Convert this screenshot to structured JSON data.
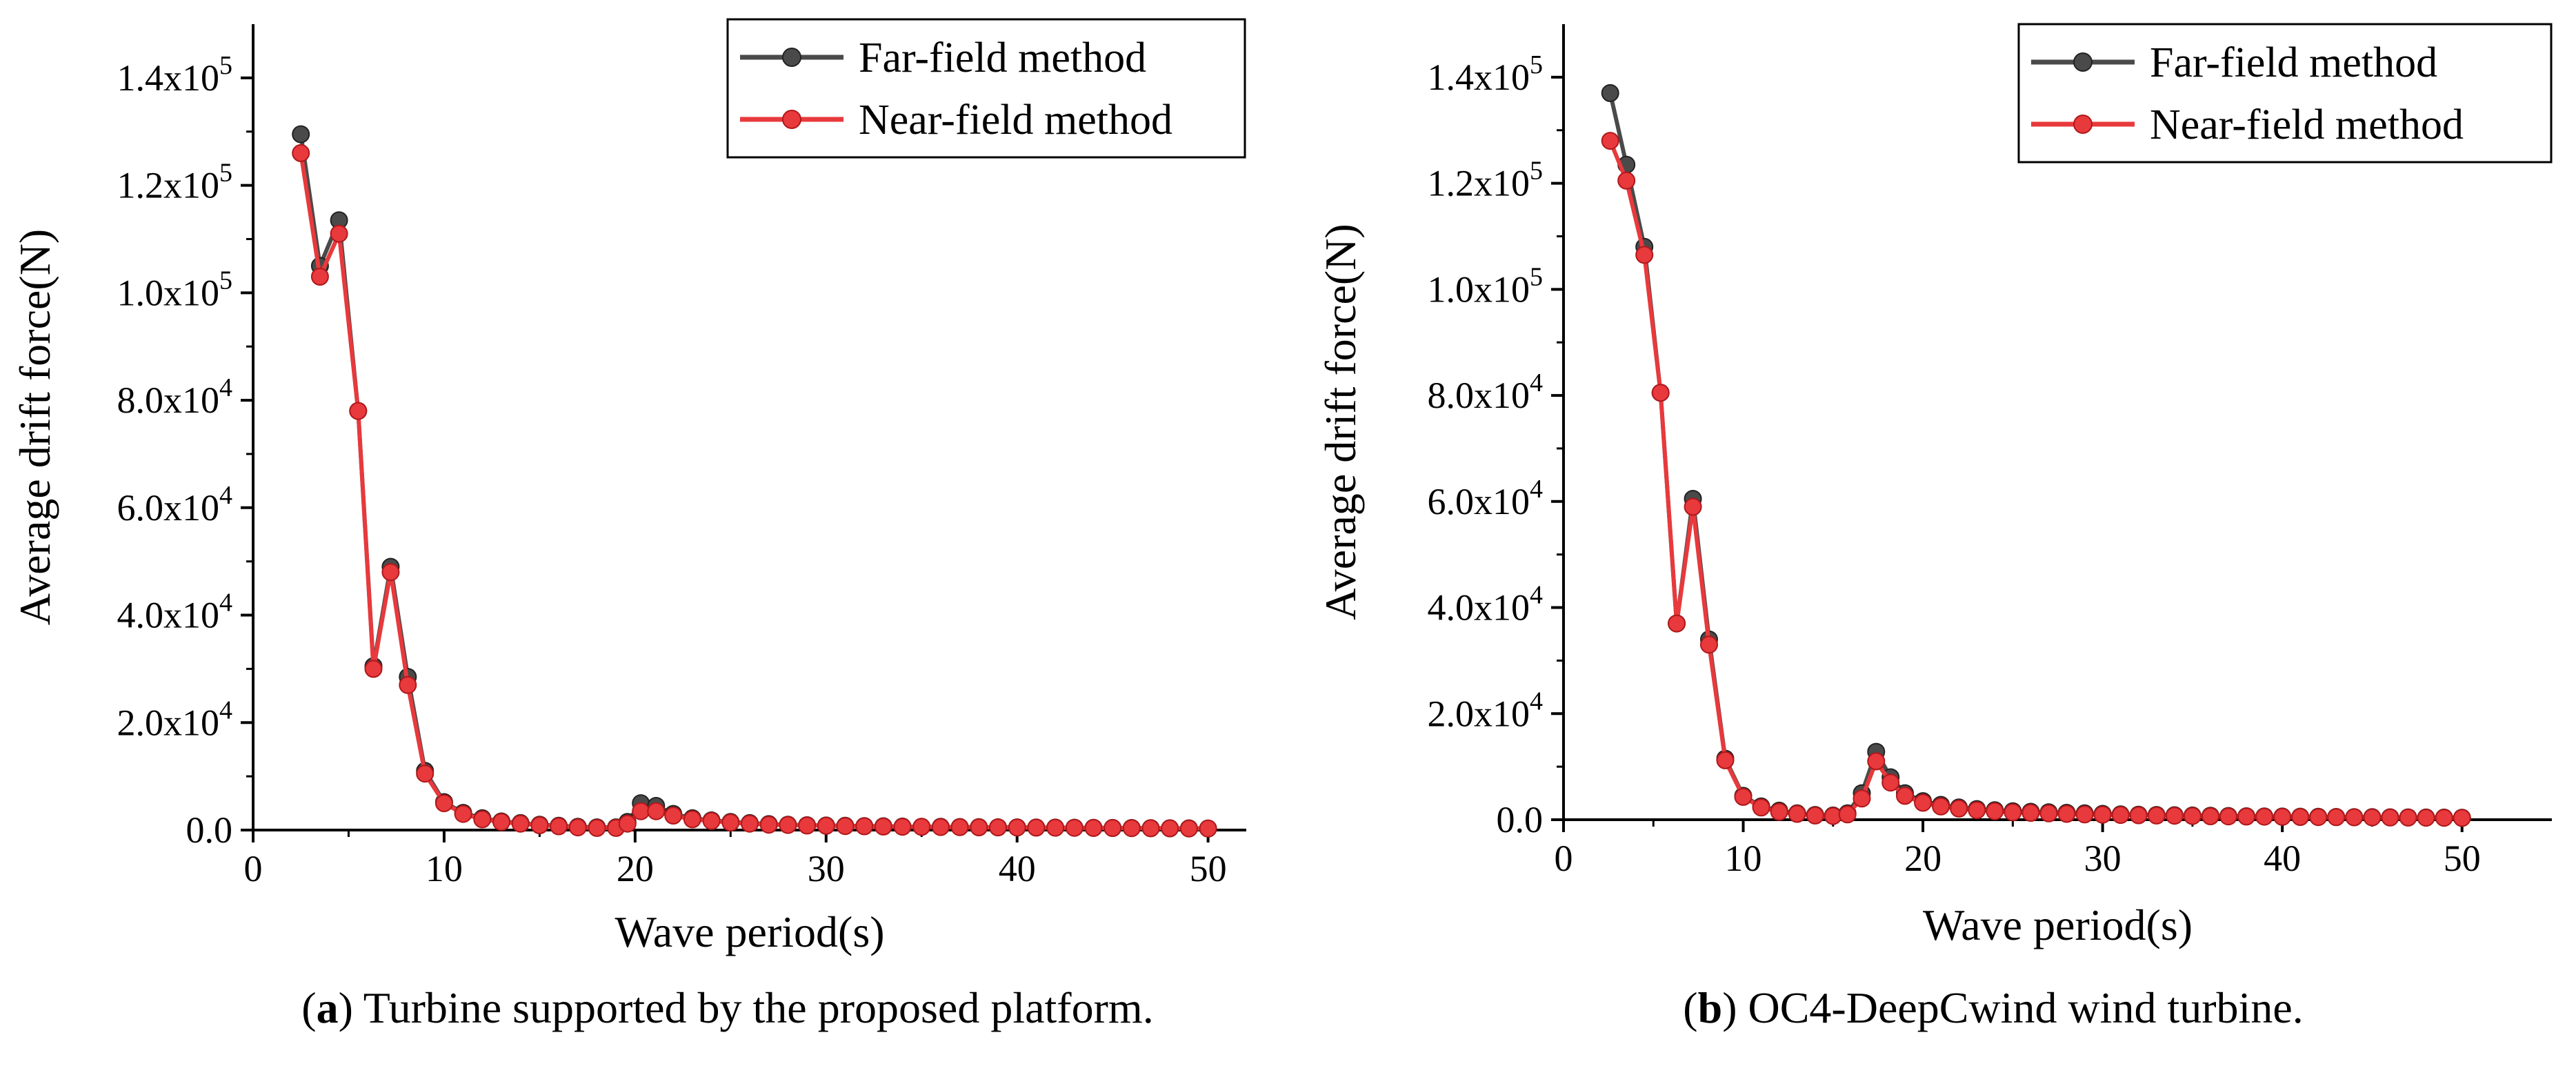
{
  "figure": {
    "panels": [
      {
        "id": "a",
        "caption_letter": "a",
        "caption_text": " Turbine supported by the proposed platform.",
        "x_label": "Wave period(s)",
        "y_label": "Average drift force(N)",
        "legend": [
          "Far-field method",
          "Near-field method"
        ],
        "x_ticks": [
          "0",
          "10",
          "20",
          "30",
          "40",
          "50"
        ],
        "y_ticks": [
          {
            "mant": "0.0",
            "exp": ""
          },
          {
            "mant": "2.0x10",
            "exp": "4"
          },
          {
            "mant": "4.0x10",
            "exp": "4"
          },
          {
            "mant": "6.0x10",
            "exp": "4"
          },
          {
            "mant": "8.0x10",
            "exp": "4"
          },
          {
            "mant": "1.0x10",
            "exp": "5"
          },
          {
            "mant": "1.2x10",
            "exp": "5"
          },
          {
            "mant": "1.4x10",
            "exp": "5"
          }
        ]
      },
      {
        "id": "b",
        "caption_letter": "b",
        "caption_text": " OC4-DeepCwind wind turbine.",
        "x_label": "Wave period(s)",
        "y_label": "Average drift force(N)",
        "legend": [
          "Far-field method",
          "Near-field method"
        ],
        "x_ticks": [
          "0",
          "10",
          "20",
          "30",
          "40",
          "50"
        ],
        "y_ticks": [
          {
            "mant": "0.0",
            "exp": ""
          },
          {
            "mant": "2.0x10",
            "exp": "4"
          },
          {
            "mant": "4.0x10",
            "exp": "4"
          },
          {
            "mant": "6.0x10",
            "exp": "4"
          },
          {
            "mant": "8.0x10",
            "exp": "4"
          },
          {
            "mant": "1.0x10",
            "exp": "5"
          },
          {
            "mant": "1.2x10",
            "exp": "5"
          },
          {
            "mant": "1.4x10",
            "exp": "5"
          }
        ]
      }
    ]
  },
  "colors": {
    "far": "#4a4a4a",
    "near": "#e8393c",
    "axis": "#000000"
  },
  "chart_data": [
    {
      "type": "line",
      "panel": "a",
      "title": "",
      "xlabel": "Wave period(s)",
      "ylabel": "Average drift force(N)",
      "xlim": [
        0,
        52
      ],
      "ylim": [
        0,
        150000
      ],
      "legend_position": "top-right",
      "series": [
        {
          "name": "Far-field method",
          "x": [
            2.5,
            3.5,
            4.5,
            5.5,
            6.3,
            7.2,
            8.1,
            9.0,
            10.0,
            11.0,
            12.0,
            13.0,
            14.0,
            15.0,
            16.0,
            17.0,
            18.0,
            19.0,
            19.6,
            20.3,
            21.1,
            22.0,
            23.0,
            24.0,
            25.0,
            26.0,
            27.0,
            28.0,
            29.0,
            30.0,
            31.0,
            32.0,
            33.0,
            34.0,
            35.0,
            36.0,
            37.0,
            38.0,
            39.0,
            40.0,
            41.0,
            42.0,
            43.0,
            44.0,
            45.0,
            46.0,
            47.0,
            48.0,
            49.0,
            50.0
          ],
          "y": [
            129500,
            105000,
            113500,
            78000,
            30500,
            49000,
            28500,
            11000,
            5200,
            3200,
            2200,
            1600,
            1300,
            1000,
            800,
            600,
            500,
            500,
            1500,
            5000,
            4500,
            3000,
            2200,
            1800,
            1500,
            1300,
            1100,
            1000,
            900,
            850,
            800,
            750,
            700,
            650,
            620,
            600,
            570,
            550,
            520,
            500,
            480,
            460,
            440,
            420,
            400,
            380,
            360,
            340,
            320,
            300
          ]
        },
        {
          "name": "Near-field method",
          "x": [
            2.5,
            3.5,
            4.5,
            5.5,
            6.3,
            7.2,
            8.1,
            9.0,
            10.0,
            11.0,
            12.0,
            13.0,
            14.0,
            15.0,
            16.0,
            17.0,
            18.0,
            19.0,
            19.6,
            20.3,
            21.1,
            22.0,
            23.0,
            24.0,
            25.0,
            26.0,
            27.0,
            28.0,
            29.0,
            30.0,
            31.0,
            32.0,
            33.0,
            34.0,
            35.0,
            36.0,
            37.0,
            38.0,
            39.0,
            40.0,
            41.0,
            42.0,
            43.0,
            44.0,
            45.0,
            46.0,
            47.0,
            48.0,
            49.0,
            50.0
          ],
          "y": [
            126000,
            103000,
            111000,
            78000,
            30000,
            48000,
            27000,
            10500,
            5000,
            3000,
            2000,
            1500,
            1200,
            900,
            700,
            500,
            400,
            400,
            1200,
            3500,
            3500,
            2700,
            2000,
            1700,
            1400,
            1200,
            1000,
            950,
            850,
            800,
            750,
            700,
            650,
            620,
            600,
            570,
            550,
            520,
            500,
            480,
            460,
            440,
            420,
            400,
            380,
            360,
            340,
            320,
            300,
            280
          ]
        }
      ]
    },
    {
      "type": "line",
      "panel": "b",
      "title": "",
      "xlabel": "Wave period(s)",
      "ylabel": "Average drift force(N)",
      "xlim": [
        0,
        55
      ],
      "ylim": [
        0,
        150000
      ],
      "legend_position": "top-right",
      "series": [
        {
          "name": "Far-field method",
          "x": [
            2.6,
            3.5,
            4.5,
            5.4,
            6.3,
            7.2,
            8.1,
            9.0,
            10.0,
            11.0,
            12.0,
            13.0,
            14.0,
            15.0,
            15.8,
            16.6,
            17.4,
            18.2,
            19.0,
            20.0,
            21.0,
            22.0,
            23.0,
            24.0,
            25.0,
            26.0,
            27.0,
            28.0,
            29.0,
            30.0,
            31.0,
            32.0,
            33.0,
            34.0,
            35.0,
            36.0,
            37.0,
            38.0,
            39.0,
            40.0,
            41.0,
            42.0,
            43.0,
            44.0,
            45.0,
            46.0,
            47.0,
            48.0,
            49.0,
            50.0
          ],
          "y": [
            137000,
            123500,
            108000,
            80500,
            37000,
            60500,
            34000,
            11500,
            4500,
            2500,
            1700,
            1200,
            900,
            800,
            1200,
            5000,
            12800,
            8000,
            5000,
            3500,
            2800,
            2300,
            2000,
            1800,
            1600,
            1500,
            1400,
            1300,
            1200,
            1100,
            1000,
            950,
            900,
            850,
            800,
            750,
            700,
            650,
            620,
            600,
            570,
            550,
            520,
            500,
            480,
            460,
            440,
            420,
            400,
            380
          ]
        },
        {
          "name": "Near-field method",
          "x": [
            2.6,
            3.5,
            4.5,
            5.4,
            6.3,
            7.2,
            8.1,
            9.0,
            10.0,
            11.0,
            12.0,
            13.0,
            14.0,
            15.0,
            15.8,
            16.6,
            17.4,
            18.2,
            19.0,
            20.0,
            21.0,
            22.0,
            23.0,
            24.0,
            25.0,
            26.0,
            27.0,
            28.0,
            29.0,
            30.0,
            31.0,
            32.0,
            33.0,
            34.0,
            35.0,
            36.0,
            37.0,
            38.0,
            39.0,
            40.0,
            41.0,
            42.0,
            43.0,
            44.0,
            45.0,
            46.0,
            47.0,
            48.0,
            49.0,
            50.0
          ],
          "y": [
            128000,
            120500,
            106500,
            80500,
            37000,
            59000,
            33000,
            11200,
            4300,
            2300,
            1500,
            1100,
            800,
            700,
            1000,
            4000,
            11000,
            7000,
            4500,
            3200,
            2500,
            2100,
            1800,
            1600,
            1400,
            1300,
            1200,
            1100,
            1000,
            950,
            900,
            850,
            800,
            750,
            700,
            650,
            620,
            600,
            570,
            550,
            520,
            500,
            480,
            460,
            440,
            420,
            400,
            380,
            360,
            340
          ]
        }
      ]
    }
  ]
}
